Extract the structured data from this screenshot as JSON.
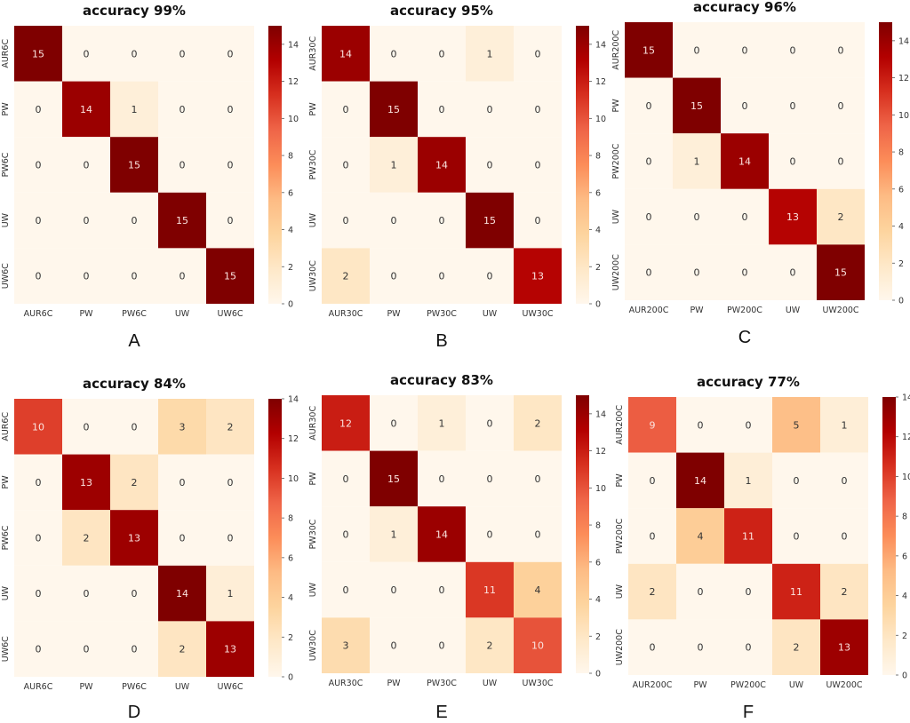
{
  "chart_data": [
    {
      "type": "heatmap",
      "panel_label": "A",
      "title": "accuracy 99%",
      "xlabels": [
        "AUR6C",
        "PW",
        "PW6C",
        "UW",
        "UW6C"
      ],
      "ylabels": [
        "AUR6C",
        "PW",
        "PW6C",
        "UW",
        "UW6C"
      ],
      "matrix": [
        [
          15,
          0,
          0,
          0,
          0
        ],
        [
          0,
          14,
          1,
          0,
          0
        ],
        [
          0,
          0,
          15,
          0,
          0
        ],
        [
          0,
          0,
          0,
          15,
          0
        ],
        [
          0,
          0,
          0,
          0,
          15
        ]
      ],
      "colorbar": {
        "range": [
          0,
          15
        ],
        "ticks": [
          0,
          2,
          4,
          6,
          8,
          10,
          12,
          14
        ],
        "colormap": "OrRd"
      }
    },
    {
      "type": "heatmap",
      "panel_label": "B",
      "title": "accuracy 95%",
      "xlabels": [
        "AUR30C",
        "PW",
        "PW30C",
        "UW",
        "UW30C"
      ],
      "ylabels": [
        "AUR30C",
        "PW",
        "PW30C",
        "UW",
        "UW30C"
      ],
      "matrix": [
        [
          14,
          0,
          0,
          1,
          0
        ],
        [
          0,
          15,
          0,
          0,
          0
        ],
        [
          0,
          1,
          14,
          0,
          0
        ],
        [
          0,
          0,
          0,
          15,
          0
        ],
        [
          2,
          0,
          0,
          0,
          13
        ]
      ],
      "colorbar": {
        "range": [
          0,
          15
        ],
        "ticks": [
          0,
          2,
          4,
          6,
          8,
          10,
          12,
          14
        ],
        "colormap": "OrRd"
      }
    },
    {
      "type": "heatmap",
      "panel_label": "C",
      "title": "accuracy 96%",
      "xlabels": [
        "AUR200C",
        "PW",
        "PW200C",
        "UW",
        "UW200C"
      ],
      "ylabels": [
        "AUR200C",
        "PW",
        "PW200C",
        "UW",
        "UW200C"
      ],
      "matrix": [
        [
          15,
          0,
          0,
          0,
          0
        ],
        [
          0,
          15,
          0,
          0,
          0
        ],
        [
          0,
          1,
          14,
          0,
          0
        ],
        [
          0,
          0,
          0,
          13,
          2
        ],
        [
          0,
          0,
          0,
          0,
          15
        ]
      ],
      "colorbar": {
        "range": [
          0,
          15
        ],
        "ticks": [
          0,
          2,
          4,
          6,
          8,
          10,
          12,
          14
        ],
        "colormap": "OrRd"
      }
    },
    {
      "type": "heatmap",
      "panel_label": "D",
      "title": "accuracy 84%",
      "xlabels": [
        "AUR6C",
        "PW",
        "PW6C",
        "UW",
        "UW6C"
      ],
      "ylabels": [
        "AUR6C",
        "PW",
        "PW6C",
        "UW",
        "UW6C"
      ],
      "matrix": [
        [
          10,
          0,
          0,
          3,
          2
        ],
        [
          0,
          13,
          2,
          0,
          0
        ],
        [
          0,
          2,
          13,
          0,
          0
        ],
        [
          0,
          0,
          0,
          14,
          1
        ],
        [
          0,
          0,
          0,
          2,
          13
        ]
      ],
      "colorbar": {
        "range": [
          0,
          14
        ],
        "ticks": [
          0,
          2,
          4,
          6,
          8,
          10,
          12,
          14
        ],
        "colormap": "OrRd"
      }
    },
    {
      "type": "heatmap",
      "panel_label": "E",
      "title": "accuracy 83%",
      "xlabels": [
        "AUR30C",
        "PW",
        "PW30C",
        "UW",
        "UW30C"
      ],
      "ylabels": [
        "AUR30C",
        "PW",
        "PW30C",
        "UW",
        "UW30C"
      ],
      "matrix": [
        [
          12,
          0,
          1,
          0,
          2
        ],
        [
          0,
          15,
          0,
          0,
          0
        ],
        [
          0,
          1,
          14,
          0,
          0
        ],
        [
          0,
          0,
          0,
          11,
          4
        ],
        [
          3,
          0,
          0,
          2,
          10
        ]
      ],
      "colorbar": {
        "range": [
          0,
          15
        ],
        "ticks": [
          0,
          2,
          4,
          6,
          8,
          10,
          12,
          14
        ],
        "colormap": "OrRd"
      }
    },
    {
      "type": "heatmap",
      "panel_label": "F",
      "title": "accuracy 77%",
      "xlabels": [
        "AUR200C",
        "PW",
        "PW200C",
        "UW",
        "UW200C"
      ],
      "ylabels": [
        "AUR200C",
        "PW",
        "PW200C",
        "UW",
        "UW200C"
      ],
      "matrix": [
        [
          9,
          0,
          0,
          5,
          1
        ],
        [
          0,
          14,
          1,
          0,
          0
        ],
        [
          0,
          4,
          11,
          0,
          0
        ],
        [
          2,
          0,
          0,
          11,
          2
        ],
        [
          0,
          0,
          0,
          2,
          13
        ]
      ],
      "colorbar": {
        "range": [
          0,
          14
        ],
        "ticks": [
          0,
          2,
          4,
          6,
          8,
          10,
          12,
          14
        ],
        "colormap": "OrRd"
      }
    }
  ],
  "colormap_stops": [
    "#fff7ec",
    "#fee8c8",
    "#fdd49e",
    "#fdbb84",
    "#fc8d59",
    "#ef6548",
    "#d7301f",
    "#b30000",
    "#7f0000"
  ]
}
